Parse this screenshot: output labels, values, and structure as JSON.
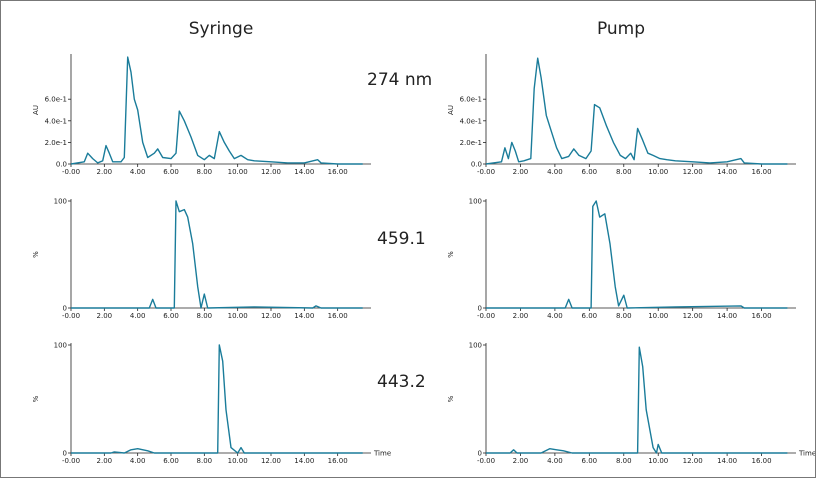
{
  "columns": [
    "Syringe",
    "Pump"
  ],
  "rows": [
    "274 nm",
    "459.1",
    "443.2"
  ],
  "chart_data": [
    {
      "type": "line",
      "ylabel": "AU",
      "color": "#1a7c9a",
      "xlim": [
        0,
        18
      ],
      "ylim": [
        0,
        1.0
      ],
      "xticks": [
        {
          "value": 0,
          "label": "-0.00"
        },
        {
          "value": 2,
          "label": "2.00"
        },
        {
          "value": 4,
          "label": "4.00"
        },
        {
          "value": 6,
          "label": "6.00"
        },
        {
          "value": 8,
          "label": "8.00"
        },
        {
          "value": 10,
          "label": "10.00"
        },
        {
          "value": 12,
          "label": "12.00"
        },
        {
          "value": 14,
          "label": "14.00"
        },
        {
          "value": 16,
          "label": "16.00"
        }
      ],
      "yticks": [
        {
          "value": 0,
          "label": "0.0"
        },
        {
          "value": 0.2,
          "label": "2.0e-1"
        },
        {
          "value": 0.4,
          "label": "4.0e-1"
        },
        {
          "value": 0.6,
          "label": "6.0e-1"
        }
      ],
      "x": [
        0,
        0.8,
        1.0,
        1.3,
        1.6,
        1.9,
        2.1,
        2.3,
        2.5,
        3.0,
        3.2,
        3.4,
        3.6,
        3.8,
        4.0,
        4.3,
        4.6,
        5.0,
        5.2,
        5.5,
        6.0,
        6.3,
        6.5,
        6.8,
        7.2,
        7.6,
        8.0,
        8.3,
        8.6,
        8.9,
        9.2,
        9.5,
        9.8,
        10.2,
        10.6,
        11,
        12,
        13,
        14,
        14.8,
        15,
        16,
        17.5
      ],
      "y": [
        0,
        0.02,
        0.1,
        0.05,
        0.01,
        0.03,
        0.17,
        0.1,
        0.02,
        0.02,
        0.06,
        0.99,
        0.85,
        0.6,
        0.5,
        0.2,
        0.06,
        0.1,
        0.14,
        0.06,
        0.05,
        0.1,
        0.49,
        0.4,
        0.25,
        0.08,
        0.04,
        0.08,
        0.05,
        0.3,
        0.2,
        0.12,
        0.05,
        0.08,
        0.04,
        0.03,
        0.02,
        0.01,
        0.01,
        0.04,
        0.01,
        0,
        0
      ]
    },
    {
      "type": "line",
      "ylabel": "AU",
      "color": "#1a7c9a",
      "xlim": [
        0,
        18
      ],
      "ylim": [
        0,
        1.0
      ],
      "xticks": [
        {
          "value": 0,
          "label": "-0.00"
        },
        {
          "value": 2,
          "label": "2.00"
        },
        {
          "value": 4,
          "label": "4.00"
        },
        {
          "value": 6,
          "label": "6.00"
        },
        {
          "value": 8,
          "label": "8.00"
        },
        {
          "value": 10,
          "label": "10.00"
        },
        {
          "value": 12,
          "label": "12.00"
        },
        {
          "value": 14,
          "label": "14.00"
        },
        {
          "value": 16,
          "label": "16.00"
        }
      ],
      "yticks": [
        {
          "value": 0,
          "label": "0.0"
        },
        {
          "value": 0.2,
          "label": "2.0e-1"
        },
        {
          "value": 0.4,
          "label": "4.0e-1"
        },
        {
          "value": 0.6,
          "label": "6.0e-1"
        }
      ],
      "x": [
        0,
        0.9,
        1.1,
        1.3,
        1.5,
        1.7,
        1.9,
        2.2,
        2.6,
        2.8,
        3.0,
        3.2,
        3.5,
        3.8,
        4.1,
        4.4,
        4.8,
        5.1,
        5.4,
        5.8,
        6.1,
        6.3,
        6.6,
        7.0,
        7.4,
        7.8,
        8.1,
        8.4,
        8.6,
        8.8,
        9.1,
        9.4,
        9.7,
        10.1,
        10.5,
        11,
        12,
        13,
        14,
        14.8,
        15,
        16,
        17.5
      ],
      "y": [
        0,
        0.02,
        0.15,
        0.05,
        0.2,
        0.12,
        0.02,
        0.03,
        0.05,
        0.7,
        0.98,
        0.8,
        0.45,
        0.3,
        0.15,
        0.05,
        0.07,
        0.14,
        0.08,
        0.05,
        0.12,
        0.55,
        0.52,
        0.35,
        0.2,
        0.08,
        0.05,
        0.1,
        0.04,
        0.33,
        0.22,
        0.1,
        0.08,
        0.05,
        0.04,
        0.03,
        0.02,
        0.01,
        0.02,
        0.05,
        0.01,
        0,
        0
      ]
    },
    {
      "type": "line",
      "ylabel": "%",
      "color": "#1a7c9a",
      "xlim": [
        0,
        18
      ],
      "ylim": [
        0,
        100
      ],
      "xticks": [
        {
          "value": 0,
          "label": "-0.00"
        },
        {
          "value": 2,
          "label": "2.00"
        },
        {
          "value": 4,
          "label": "4.00"
        },
        {
          "value": 6,
          "label": "6.00"
        },
        {
          "value": 8,
          "label": "8.00"
        },
        {
          "value": 10,
          "label": "10.00"
        },
        {
          "value": 12,
          "label": "12.00"
        },
        {
          "value": 14,
          "label": "14.00"
        },
        {
          "value": 16,
          "label": "16.00"
        }
      ],
      "yticks": [
        0,
        100
      ],
      "x": [
        0,
        3,
        4.7,
        4.9,
        5.1,
        6.2,
        6.3,
        6.5,
        6.8,
        7.0,
        7.3,
        7.6,
        7.8,
        8.0,
        8.2,
        11,
        14.5,
        14.7,
        15,
        17.5
      ],
      "y": [
        0,
        0,
        0,
        8,
        0,
        0,
        100,
        90,
        92,
        85,
        60,
        20,
        0,
        13,
        0,
        1,
        0,
        2,
        0,
        0
      ]
    },
    {
      "type": "line",
      "ylabel": "%",
      "color": "#1a7c9a",
      "xlim": [
        0,
        18
      ],
      "ylim": [
        0,
        100
      ],
      "xticks": [
        {
          "value": 0,
          "label": "-0.00"
        },
        {
          "value": 2,
          "label": "2.00"
        },
        {
          "value": 4,
          "label": "4.00"
        },
        {
          "value": 6,
          "label": "6.00"
        },
        {
          "value": 8,
          "label": "8.00"
        },
        {
          "value": 10,
          "label": "10.00"
        },
        {
          "value": 12,
          "label": "12.00"
        },
        {
          "value": 14,
          "label": "14.00"
        },
        {
          "value": 16,
          "label": "16.00"
        }
      ],
      "yticks": [
        0,
        100
      ],
      "x": [
        0,
        3,
        4.6,
        4.8,
        5.0,
        6.1,
        6.2,
        6.4,
        6.6,
        6.9,
        7.2,
        7.5,
        7.7,
        8.0,
        8.2,
        11,
        14.8,
        15,
        17.5
      ],
      "y": [
        0,
        0,
        0,
        8,
        0,
        0,
        95,
        100,
        85,
        88,
        60,
        20,
        2,
        12,
        0,
        1,
        2,
        0,
        0
      ]
    },
    {
      "type": "line",
      "ylabel": "%",
      "xlabel": "Time",
      "color": "#1a7c9a",
      "xlim": [
        0,
        18
      ],
      "ylim": [
        0,
        100
      ],
      "xticks": [
        {
          "value": 0,
          "label": "-0.00"
        },
        {
          "value": 2,
          "label": "2.00"
        },
        {
          "value": 4,
          "label": "4.00"
        },
        {
          "value": 6,
          "label": "6.00"
        },
        {
          "value": 8,
          "label": "8.00"
        },
        {
          "value": 10,
          "label": "10.00"
        },
        {
          "value": 12,
          "label": "12.00"
        },
        {
          "value": 14,
          "label": "14.00"
        },
        {
          "value": 16,
          "label": "16.00"
        }
      ],
      "yticks": [
        0,
        100
      ],
      "x": [
        0,
        2.4,
        2.6,
        3.2,
        3.6,
        4.0,
        4.6,
        5.0,
        8.7,
        8.8,
        8.9,
        9.1,
        9.3,
        9.6,
        10.0,
        10.2,
        10.4,
        17.5
      ],
      "y": [
        0,
        0,
        1,
        0,
        3,
        4,
        2,
        0,
        0,
        0,
        100,
        85,
        40,
        5,
        0,
        5,
        0,
        0
      ]
    },
    {
      "type": "line",
      "ylabel": "%",
      "xlabel": "Time",
      "color": "#1a7c9a",
      "xlim": [
        0,
        18
      ],
      "ylim": [
        0,
        100
      ],
      "xticks": [
        {
          "value": 0,
          "label": "-0.00"
        },
        {
          "value": 2,
          "label": "2.00"
        },
        {
          "value": 4,
          "label": "4.00"
        },
        {
          "value": 6,
          "label": "6.00"
        },
        {
          "value": 8,
          "label": "8.00"
        },
        {
          "value": 10,
          "label": "10.00"
        },
        {
          "value": 12,
          "label": "12.00"
        },
        {
          "value": 14,
          "label": "14.00"
        },
        {
          "value": 16,
          "label": "16.00"
        }
      ],
      "yticks": [
        0,
        100
      ],
      "x": [
        0,
        1.4,
        1.6,
        1.8,
        3.2,
        3.7,
        4.1,
        4.5,
        5.0,
        8.7,
        8.8,
        8.9,
        9.1,
        9.3,
        9.7,
        9.9,
        10.0,
        10.2,
        17.5
      ],
      "y": [
        0,
        0,
        3,
        0,
        0,
        4,
        3,
        2,
        0,
        0,
        0,
        98,
        80,
        40,
        5,
        0,
        8,
        0,
        0
      ]
    }
  ]
}
